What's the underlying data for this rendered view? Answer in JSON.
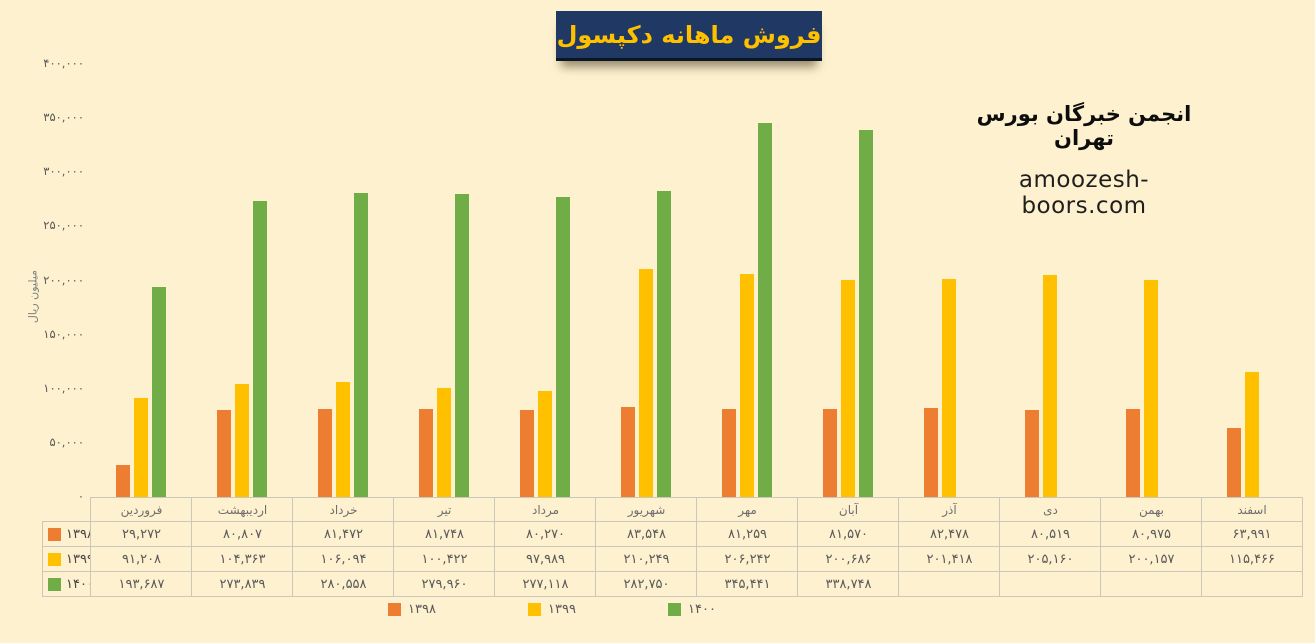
{
  "title": "فروش ماهانه دکپسول",
  "brand": {
    "org_name": "انجمن خبرگان بورس تهران",
    "website": "amoozesh-boors.com"
  },
  "chart_data": {
    "type": "bar",
    "title": "فروش ماهانه دکپسول",
    "xlabel": "",
    "ylabel": "میلیون ریال",
    "ylim": [
      0,
      400000
    ],
    "ytick_step": 50000,
    "ytick_labels": [
      "۴۰۰,۰۰۰",
      "۳۵۰,۰۰۰",
      "۳۰۰,۰۰۰",
      "۲۵۰,۰۰۰",
      "۲۰۰,۰۰۰",
      "۱۵۰,۰۰۰",
      "۱۰۰,۰۰۰",
      "۵۰,۰۰۰",
      "۰"
    ],
    "grid": false,
    "legend_position": "bottom",
    "data_table_shown": true,
    "categories": [
      "فروردین",
      "اردیبهشت",
      "خرداد",
      "تیر",
      "مرداد",
      "شهریور",
      "مهر",
      "آبان",
      "آذر",
      "دی",
      "بهمن",
      "اسفند"
    ],
    "series": [
      {
        "name": "۱۳۹۸",
        "color": "#ED7D31",
        "values": [
          29272,
          80807,
          81472,
          81748,
          80270,
          83548,
          81259,
          81570,
          82478,
          80519,
          80975,
          63991
        ],
        "labels": [
          "۲۹,۲۷۲",
          "۸۰,۸۰۷",
          "۸۱,۴۷۲",
          "۸۱,۷۴۸",
          "۸۰,۲۷۰",
          "۸۳,۵۴۸",
          "۸۱,۲۵۹",
          "۸۱,۵۷۰",
          "۸۲,۴۷۸",
          "۸۰,۵۱۹",
          "۸۰,۹۷۵",
          "۶۳,۹۹۱"
        ]
      },
      {
        "name": "۱۳۹۹",
        "color": "#FFC000",
        "values": [
          91208,
          104363,
          106094,
          100422,
          97989,
          210249,
          206242,
          200686,
          201418,
          205160,
          200157,
          115466
        ],
        "labels": [
          "۹۱,۲۰۸",
          "۱۰۴,۳۶۳",
          "۱۰۶,۰۹۴",
          "۱۰۰,۴۲۲",
          "۹۷,۹۸۹",
          "۲۱۰,۲۴۹",
          "۲۰۶,۲۴۲",
          "۲۰۰,۶۸۶",
          "۲۰۱,۴۱۸",
          "۲۰۵,۱۶۰",
          "۲۰۰,۱۵۷",
          "۱۱۵,۴۶۶"
        ]
      },
      {
        "name": "۱۴۰۰",
        "color": "#70AD47",
        "values": [
          193687,
          273839,
          280558,
          279960,
          277118,
          282750,
          345441,
          338748,
          null,
          null,
          null,
          null
        ],
        "labels": [
          "۱۹۳,۶۸۷",
          "۲۷۳,۸۳۹",
          "۲۸۰,۵۵۸",
          "۲۷۹,۹۶۰",
          "۲۷۷,۱۱۸",
          "۲۸۲,۷۵۰",
          "۳۴۵,۴۴۱",
          "۳۳۸,۷۴۸",
          "",
          "",
          "",
          ""
        ]
      }
    ]
  },
  "colors": {
    "background": "#FDF1CF",
    "title_bg": "#1F3864",
    "title_text": "#FFC000",
    "table_border": "#CBC8BB",
    "axis_text": "#595959"
  }
}
